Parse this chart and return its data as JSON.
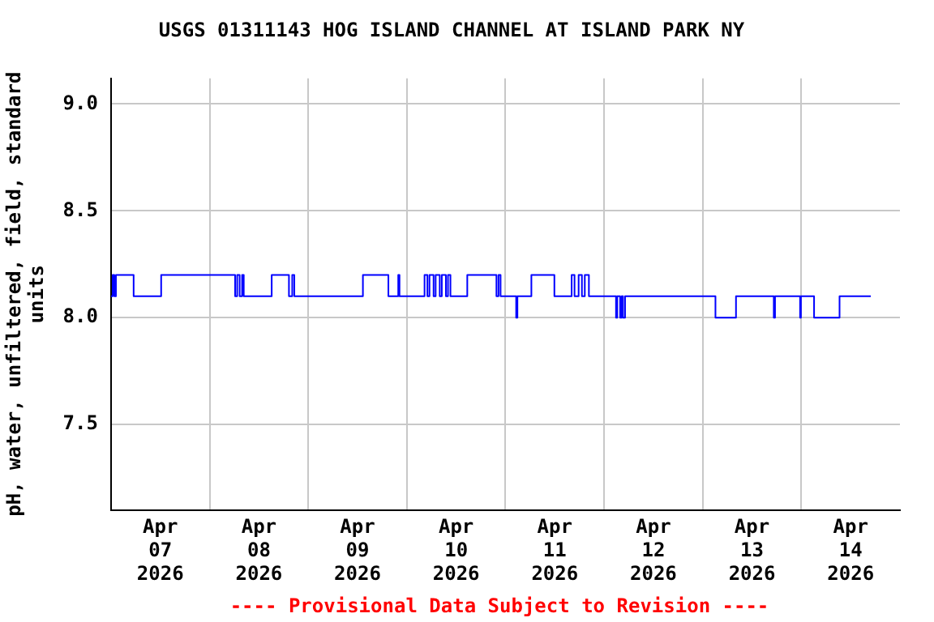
{
  "chart_data": {
    "type": "step",
    "title": "USGS 01311143 HOG ISLAND CHANNEL AT ISLAND PARK NY",
    "ylabel": "pH, water, unfiltered, field, standard units",
    "annotations": [
      "---- Provisional Data Subject to Revision ----"
    ],
    "x": [
      "2026-04-07T00:00",
      "2026-04-07T00:24",
      "2026-04-07T00:48",
      "2026-04-07T01:12",
      "2026-04-07T05:30",
      "2026-04-07T12:12",
      "2026-04-08T06:12",
      "2026-04-08T06:42",
      "2026-04-08T07:18",
      "2026-04-08T07:54",
      "2026-04-08T08:18",
      "2026-04-08T15:06",
      "2026-04-08T19:18",
      "2026-04-08T20:06",
      "2026-04-08T20:36",
      "2026-04-09T13:18",
      "2026-04-09T19:30",
      "2026-04-09T21:54",
      "2026-04-09T22:12",
      "2026-04-10T04:18",
      "2026-04-10T05:00",
      "2026-04-10T05:30",
      "2026-04-10T06:30",
      "2026-04-10T07:00",
      "2026-04-10T08:00",
      "2026-04-10T08:30",
      "2026-04-10T09:30",
      "2026-04-10T10:00",
      "2026-04-10T10:36",
      "2026-04-10T14:42",
      "2026-04-10T21:48",
      "2026-04-10T22:18",
      "2026-04-10T22:48",
      "2026-04-11T02:36",
      "2026-04-11T02:54",
      "2026-04-11T06:18",
      "2026-04-11T11:54",
      "2026-04-11T16:06",
      "2026-04-11T16:48",
      "2026-04-11T17:48",
      "2026-04-11T18:36",
      "2026-04-11T19:18",
      "2026-04-11T20:18",
      "2026-04-12T02:54",
      "2026-04-12T03:12",
      "2026-04-12T03:54",
      "2026-04-12T04:18",
      "2026-04-12T04:36",
      "2026-04-12T05:06",
      "2026-04-13T03:06",
      "2026-04-13T08:06",
      "2026-04-13T17:18",
      "2026-04-13T17:36",
      "2026-04-13T23:42",
      "2026-04-13T23:54",
      "2026-04-14T03:06",
      "2026-04-14T09:18",
      "2026-04-14T16:54"
    ],
    "series": [
      {
        "color": "#0000ff",
        "values": [
          8.1,
          8.2,
          8.1,
          8.2,
          8.1,
          8.2,
          8.1,
          8.2,
          8.1,
          8.2,
          8.1,
          8.2,
          8.1,
          8.2,
          8.1,
          8.2,
          8.1,
          8.2,
          8.1,
          8.2,
          8.1,
          8.2,
          8.1,
          8.2,
          8.1,
          8.2,
          8.1,
          8.2,
          8.1,
          8.2,
          8.1,
          8.2,
          8.1,
          8.0,
          8.1,
          8.2,
          8.1,
          8.2,
          8.1,
          8.2,
          8.1,
          8.2,
          8.1,
          8.0,
          8.1,
          8.0,
          8.1,
          8.0,
          8.1,
          8.0,
          8.1,
          8.0,
          8.1,
          8.0,
          8.1,
          8.0,
          8.1,
          8.1
        ]
      }
    ],
    "xlim": [
      "2026-04-07T00:00",
      "2026-04-15T00:00"
    ],
    "xticks": [
      {
        "value": "2026-04-07T12:00",
        "label": "Apr\n07\n2026"
      },
      {
        "value": "2026-04-08T00:00",
        "label": null
      },
      {
        "value": "2026-04-08T12:00",
        "label": "Apr\n08\n2026"
      },
      {
        "value": "2026-04-09T00:00",
        "label": null
      },
      {
        "value": "2026-04-09T12:00",
        "label": "Apr\n09\n2026"
      },
      {
        "value": "2026-04-10T00:00",
        "label": null
      },
      {
        "value": "2026-04-10T12:00",
        "label": "Apr\n10\n2026"
      },
      {
        "value": "2026-04-11T00:00",
        "label": null
      },
      {
        "value": "2026-04-11T12:00",
        "label": "Apr\n11\n2026"
      },
      {
        "value": "2026-04-12T00:00",
        "label": null
      },
      {
        "value": "2026-04-12T12:00",
        "label": "Apr\n12\n2026"
      },
      {
        "value": "2026-04-13T00:00",
        "label": null
      },
      {
        "value": "2026-04-13T12:00",
        "label": "Apr\n13\n2026"
      },
      {
        "value": "2026-04-14T00:00",
        "label": null
      },
      {
        "value": "2026-04-14T12:00",
        "label": "Apr\n14\n2026"
      }
    ],
    "ylim": [
      7.1,
      9.12
    ],
    "yticks": [
      {
        "value": 7.5,
        "label": "7.5"
      },
      {
        "value": 8.0,
        "label": "8.0"
      },
      {
        "value": 8.5,
        "label": "8.5"
      },
      {
        "value": 9.0,
        "label": "9.0"
      }
    ],
    "grid": true,
    "legend": false,
    "marker": "none",
    "line_style": "solid"
  }
}
